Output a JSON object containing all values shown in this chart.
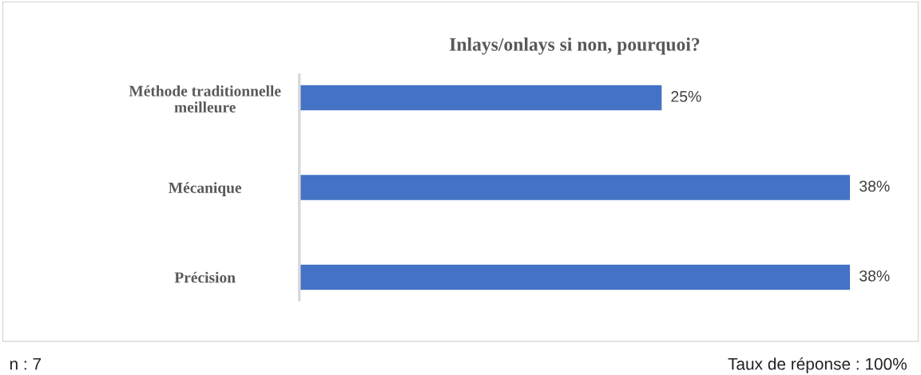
{
  "chart_data": {
    "type": "bar",
    "orientation": "horizontal",
    "title": "Inlays/onlays si non, pourquoi?",
    "categories": [
      "Méthode traditionnelle\nmeilleure",
      "Mécanique",
      "Précision"
    ],
    "values": [
      25,
      38,
      38
    ],
    "color": "#4472c4",
    "data_labels": true,
    "value_labels": [
      "25%",
      "38%",
      "38%"
    ],
    "grid": false,
    "legend": false,
    "annotations": [
      "n : 7",
      "Taux de réponse : 100%"
    ]
  }
}
